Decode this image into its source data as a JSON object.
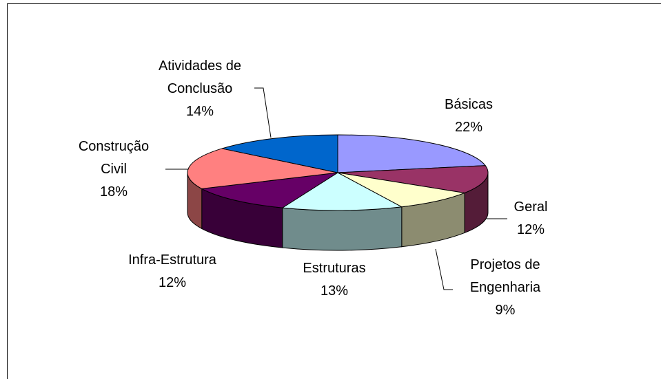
{
  "chart_data": {
    "type": "pie3d",
    "categories": [
      "Básicas",
      "Geral",
      "Projetos de Engenharia",
      "Estruturas",
      "Infra-Estrutura",
      "Construção Civil",
      "Atividades de Conclusão"
    ],
    "values": [
      22,
      12,
      9,
      13,
      12,
      18,
      14
    ],
    "value_labels": [
      "22%",
      "12%",
      "9%",
      "13%",
      "12%",
      "18%",
      "14%"
    ],
    "colors": [
      "#9999ff",
      "#993366",
      "#ffffcc",
      "#ccffff",
      "#660066",
      "#ff8080",
      "#0066cc"
    ]
  }
}
